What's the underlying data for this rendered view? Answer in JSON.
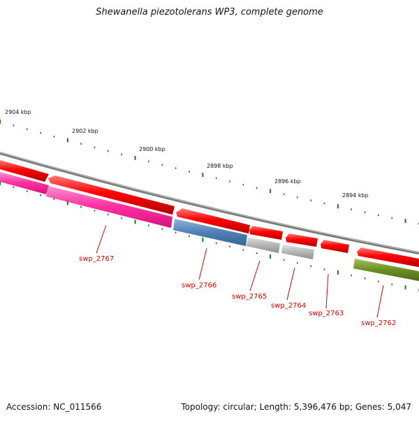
{
  "title": "Shewanella piezotolerans WP3, complete genome",
  "footer": {
    "accession": "Accession: NC_011566",
    "summary": "Topology: circular; Length: 5,396,476 bp; Genes: 5,047"
  },
  "scale_labels": [
    "2904 kbp",
    "2902 kbp",
    "2900 kbp",
    "2898 kbp",
    "2896 kbp",
    "2894 kbp"
  ],
  "gene_labels": [
    "swp_2767",
    "swp_2766",
    "swp_2765",
    "swp_2764",
    "swp_2763",
    "swp_2762"
  ],
  "colors": {
    "backbone": "#8c8c8c",
    "forward_gene": "#ff0000",
    "label": "#d40000",
    "tick": "#1a7a1a",
    "pink": "#ff2ea0",
    "blue": "#4f7fb5",
    "grey": "#b4b4b4",
    "olive": "#6a8f22"
  }
}
